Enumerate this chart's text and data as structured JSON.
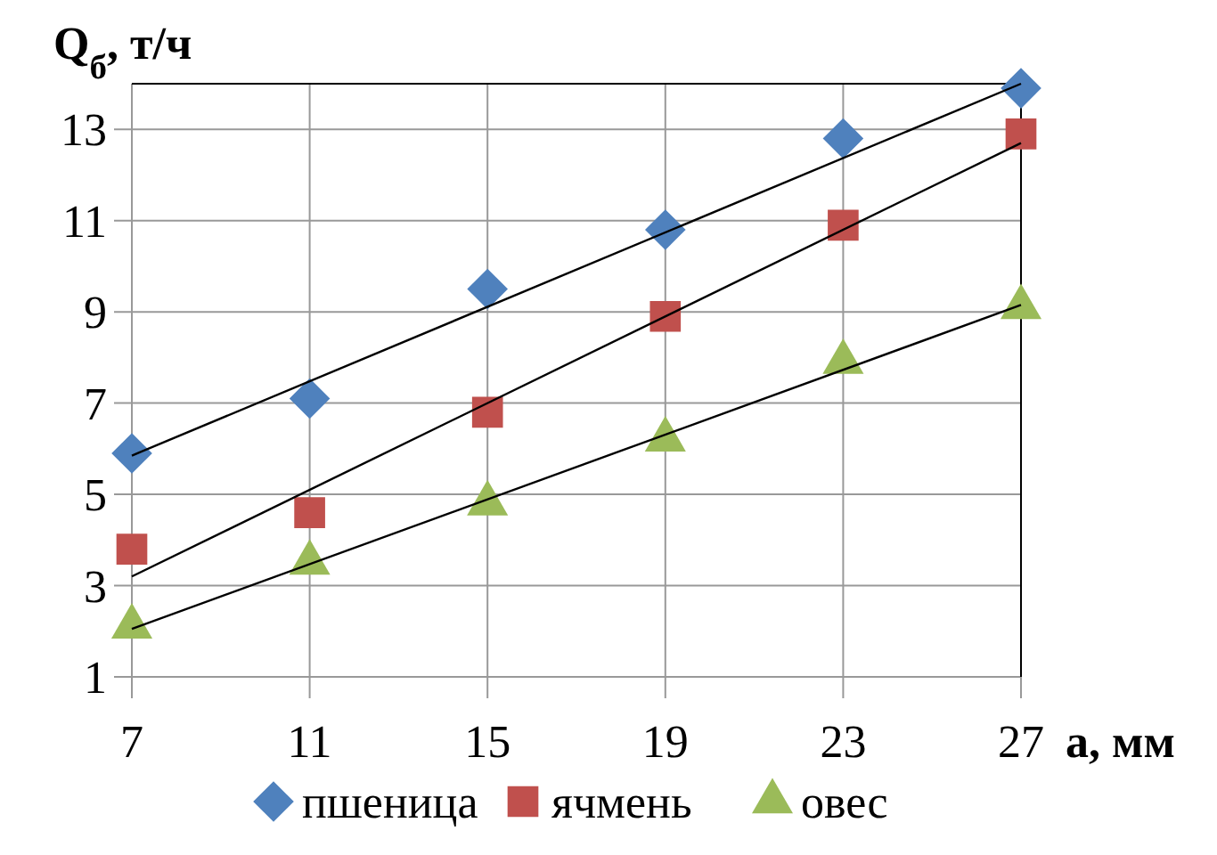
{
  "chart_data": {
    "type": "scatter",
    "ylabel": "Q$_{б}$, т/ч",
    "xlabel": "a, мм",
    "xlim": [
      7,
      27
    ],
    "xticks": [
      7,
      11,
      15,
      19,
      23,
      27
    ],
    "ylim": [
      1,
      14
    ],
    "yticks": [
      1,
      3,
      5,
      7,
      9,
      11,
      13
    ],
    "grid": true,
    "legend": "bottom",
    "series": [
      {
        "name": "пшеница",
        "color": "#4f81bd",
        "marker": "diamond",
        "x": [
          7,
          11,
          15,
          19,
          23,
          27
        ],
        "values": [
          5.9,
          7.1,
          9.5,
          10.8,
          12.8,
          13.9
        ]
      },
      {
        "name": "ячмень",
        "color": "#c0504d",
        "marker": "square",
        "x": [
          7,
          11,
          15,
          19,
          23,
          27
        ],
        "values": [
          3.8,
          4.6,
          6.8,
          8.9,
          10.9,
          12.9
        ]
      },
      {
        "name": "овес",
        "color": "#9bbb59",
        "marker": "triangle",
        "x": [
          7,
          11,
          15,
          19,
          23,
          27
        ],
        "values": [
          2.1,
          3.5,
          4.8,
          6.2,
          7.9,
          9.1
        ]
      },
      {
        "type": "line",
        "color": "#000000",
        "marker": "none",
        "x": [
          7,
          27
        ],
        "values": [
          5.85,
          14
        ]
      },
      {
        "type": "line",
        "color": "#000000",
        "marker": "none",
        "x": [
          7,
          27
        ],
        "values": [
          3.2,
          12.7
        ]
      },
      {
        "type": "line",
        "color": "#000000",
        "marker": "none",
        "x": [
          7,
          27
        ],
        "values": [
          2.05,
          9.15
        ]
      }
    ]
  }
}
